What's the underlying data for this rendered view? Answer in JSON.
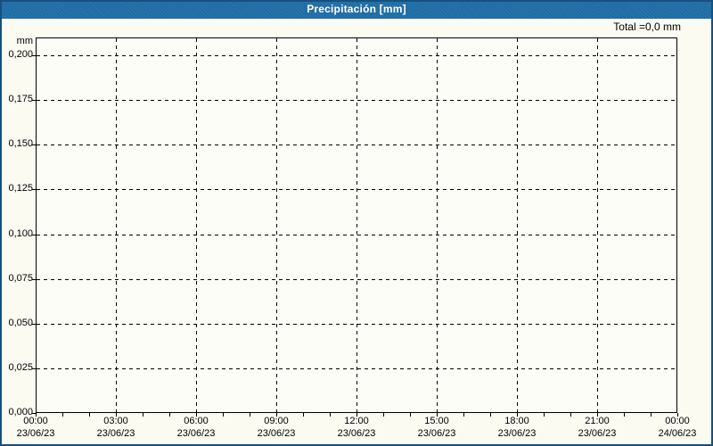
{
  "header": {
    "title": "Precipitación [mm]"
  },
  "summary": {
    "total_label": "Total =0,0 mm"
  },
  "y_axis": {
    "unit_label": "mm"
  },
  "colors": {
    "header_bg": "#1e6da5",
    "title_text": "#ffffff",
    "window_border": "#17507e",
    "window_bg": "#fbfbf2",
    "plot_bg": "#fdfdf8",
    "grid": "#000000",
    "label_text": "#000000"
  },
  "chart_data": {
    "type": "bar",
    "title": "Precipitación [mm]",
    "ylabel": "mm",
    "total_annotation": "Total =0,0 mm",
    "grid_style": "dashed",
    "ylim": [
      0,
      0.21
    ],
    "x_hours_range": [
      0,
      24
    ],
    "x_minor_tick_hours": 1,
    "y_ticks": [
      {
        "label": "0,200",
        "value": 0.2
      },
      {
        "label": "0,175",
        "value": 0.175
      },
      {
        "label": "0,150",
        "value": 0.15
      },
      {
        "label": "0,125",
        "value": 0.125
      },
      {
        "label": "0,100",
        "value": 0.1
      },
      {
        "label": "0,075",
        "value": 0.075
      },
      {
        "label": "0,050",
        "value": 0.05
      },
      {
        "label": "0,025",
        "value": 0.025
      },
      {
        "label": "0,000",
        "value": 0.0
      }
    ],
    "x_ticks": [
      {
        "time": "00:00",
        "date": "23/06/23",
        "hour": 0
      },
      {
        "time": "03:00",
        "date": "23/06/23",
        "hour": 3
      },
      {
        "time": "06:00",
        "date": "23/06/23",
        "hour": 6
      },
      {
        "time": "09:00",
        "date": "23/06/23",
        "hour": 9
      },
      {
        "time": "12:00",
        "date": "23/06/23",
        "hour": 12
      },
      {
        "time": "15:00",
        "date": "23/06/23",
        "hour": 15
      },
      {
        "time": "18:00",
        "date": "23/06/23",
        "hour": 18
      },
      {
        "time": "21:00",
        "date": "23/06/23",
        "hour": 21
      },
      {
        "time": "00:00",
        "date": "24/06/23",
        "hour": 24
      }
    ],
    "series": [
      {
        "name": "Precipitación",
        "values": []
      }
    ]
  }
}
